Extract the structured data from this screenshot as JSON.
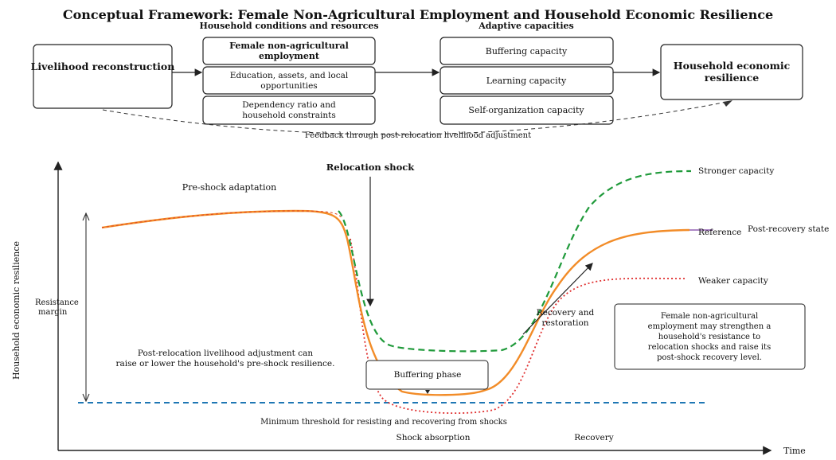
{
  "title": "Conceptual Framework: Female Non-Agricultural Employment and Household Economic Resilience",
  "framework": {
    "group_conditions": "Household conditions and resources",
    "group_capacities": "Adaptive capacities",
    "livelihood": "Livelihood reconstruction",
    "cond_female": [
      "Female non-agricultural",
      "employment"
    ],
    "cond_education": [
      "Education, assets, and local",
      "opportunities"
    ],
    "cond_dependency": [
      "Dependency ratio and",
      "household constraints"
    ],
    "cap_buffering": "Buffering capacity",
    "cap_learning": "Learning capacity",
    "cap_self": "Self-organization capacity",
    "outcome": [
      "Household economic",
      "resilience"
    ],
    "feedback": "Feedback through post-relocation livelihood adjustment"
  },
  "chart": {
    "y_axis": "Household economic resilience",
    "x_axis": "Time",
    "relocation_shock": "Relocation shock",
    "pre_shock": "Pre-shock adaptation",
    "resistance_margin": [
      "Resistance",
      "margin"
    ],
    "adjustment_note": [
      "Post-relocation livelihood adjustment can",
      "raise or lower the household's pre-shock resilience."
    ],
    "buffering_phase": "Buffering phase",
    "recovery_restoration": [
      "Recovery and",
      "restoration"
    ],
    "threshold": "Minimum threshold for resisting and recovering from shocks",
    "phase_absorption": "Shock absorption",
    "phase_recovery": "Recovery",
    "legend_stronger": "Stronger capacity",
    "legend_reference": "Reference",
    "legend_post": "Post-recovery state",
    "legend_weaker": "Weaker capacity",
    "note": [
      "Female non-agricultural",
      "employment may strengthen a",
      "household's resistance to",
      "relocation shocks and raise its",
      "post-shock recovery level."
    ]
  },
  "colors": {
    "reference": "#f28c28",
    "stronger": "#1f9a3a",
    "weaker": "#e03030",
    "threshold": "#1f77b4",
    "reference_pre_edge": "#e04020",
    "legend_reference_tick": "#7b3fa0"
  },
  "chart_data": {
    "type": "line",
    "xlabel": "Time",
    "ylabel": "Household economic resilience",
    "series": [
      {
        "name": "Stronger capacity",
        "style": "dashed",
        "color": "#1f9a3a"
      },
      {
        "name": "Reference",
        "style": "solid",
        "color": "#f28c28"
      },
      {
        "name": "Weaker capacity",
        "style": "dotted",
        "color": "#e03030"
      }
    ],
    "threshold": {
      "label": "Minimum threshold for resisting and recovering from shocks",
      "style": "dashed",
      "color": "#1f77b4"
    }
  }
}
